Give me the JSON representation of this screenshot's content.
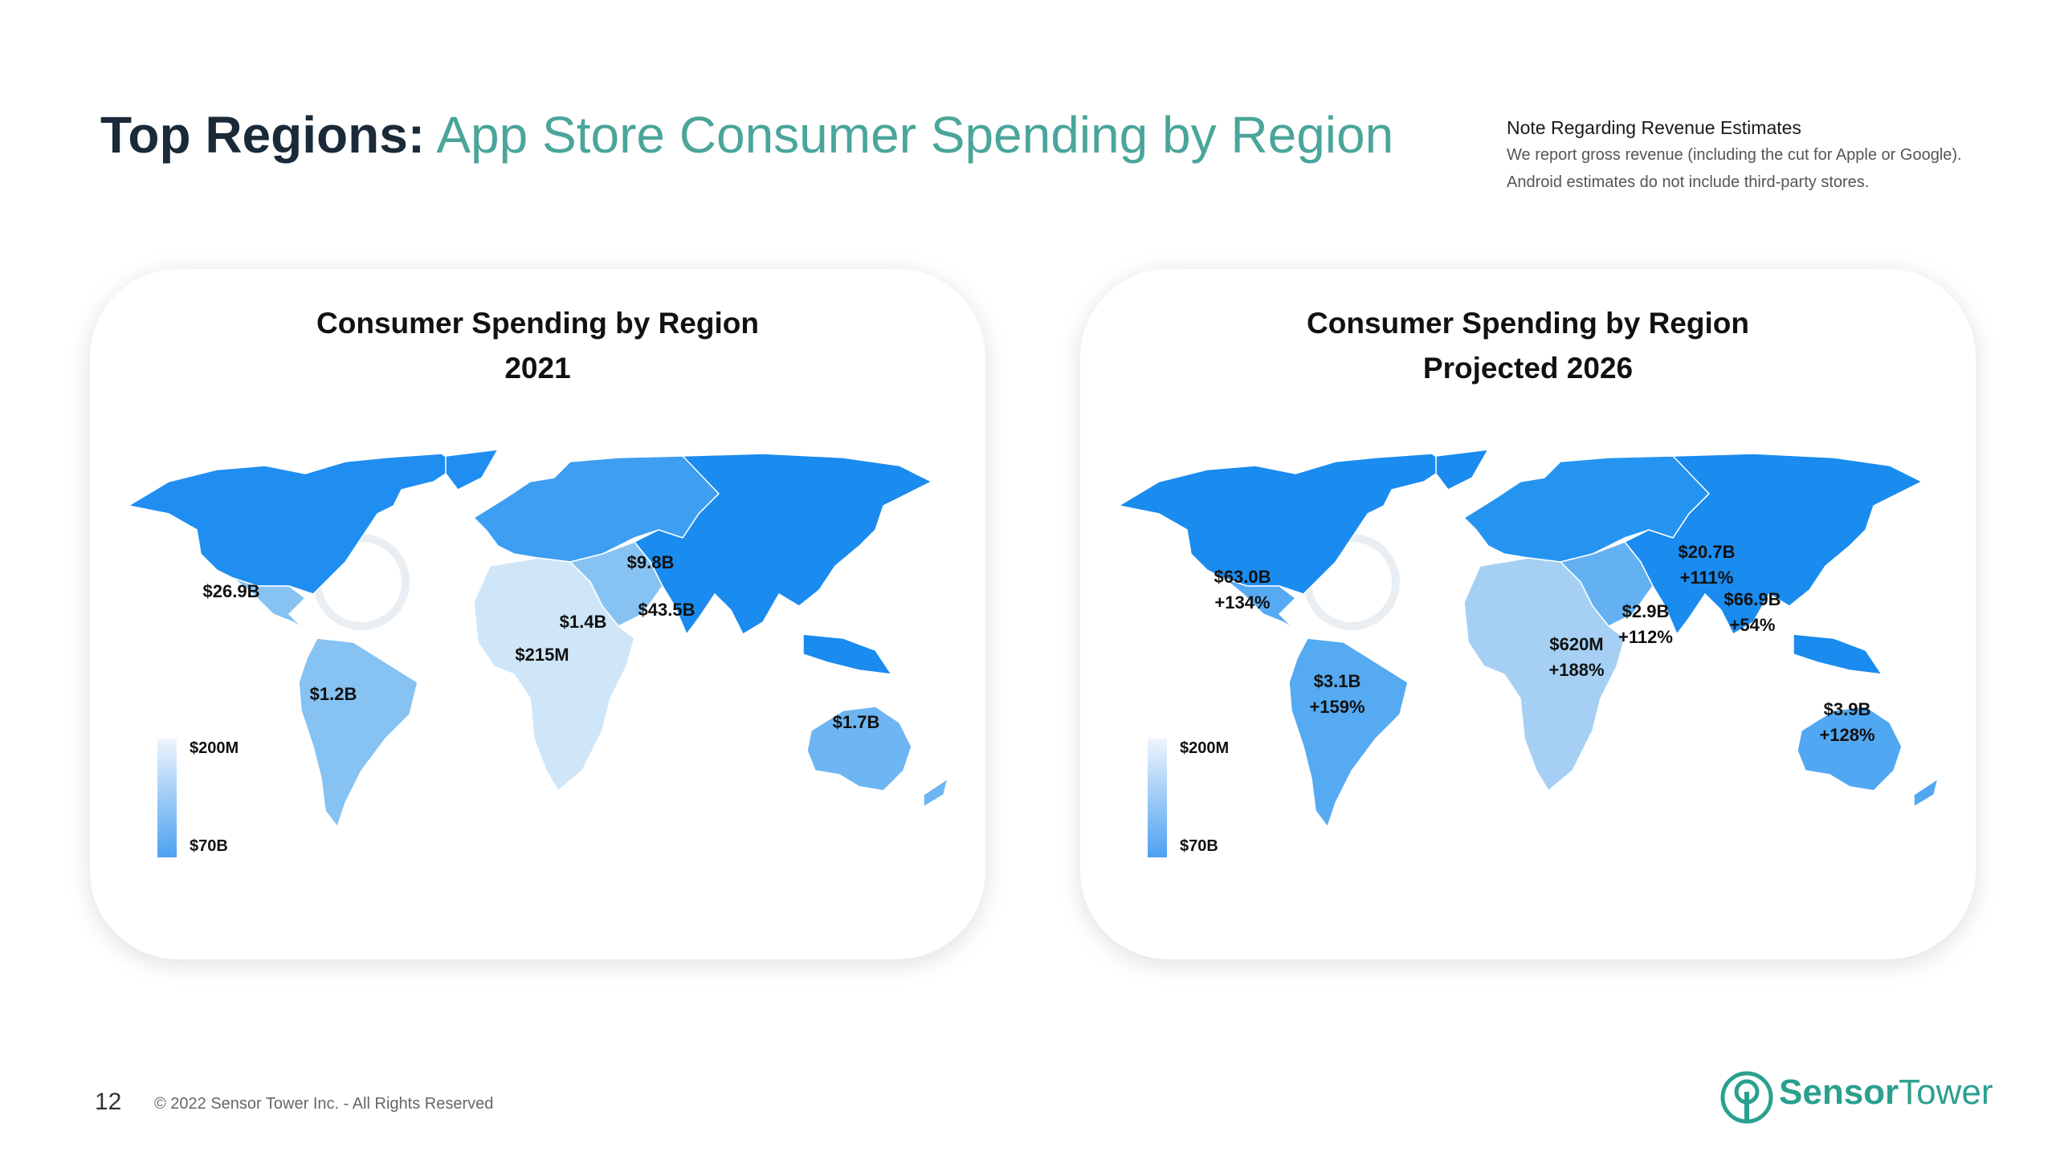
{
  "header": {
    "title_bold": "Top Regions:",
    "title_light": "App Store Consumer Spending by Region"
  },
  "note": {
    "title": "Note Regarding Revenue Estimates",
    "line1": "We report gross revenue (including the cut for Apple or Google).",
    "line2": "Android estimates do not include third-party stores."
  },
  "maps": [
    {
      "title": "Consumer Spending by Region",
      "subtitle": "2021",
      "legend": {
        "low": "$200M",
        "high": "$70B"
      },
      "regions": {
        "north_america": {
          "value": "$26.9B",
          "color": "#1f8ef0"
        },
        "latin_america": {
          "value": "$1.2B",
          "color": "#86c2f2"
        },
        "europe": {
          "value": "$9.8B",
          "color": "#3d9ef2"
        },
        "middle_east": {
          "value": "$1.4B",
          "color": "#87c3f2"
        },
        "africa": {
          "value": "$215M",
          "color": "#cfe6f8"
        },
        "asia": {
          "value": "$43.5B",
          "color": "#1a8bef"
        },
        "oceania": {
          "value": "$1.7B",
          "color": "#6db6f3"
        }
      }
    },
    {
      "title": "Consumer Spending by Region",
      "subtitle": "Projected 2026",
      "legend": {
        "low": "$200M",
        "high": "$70B"
      },
      "regions": {
        "north_america": {
          "value": "$63.0B",
          "growth": "+134%",
          "color": "#1a8bef"
        },
        "latin_america": {
          "value": "$3.1B",
          "growth": "+159%",
          "color": "#55aaf2"
        },
        "europe": {
          "value": "$20.7B",
          "growth": "+111%",
          "color": "#2594f1"
        },
        "middle_east": {
          "value": "$2.9B",
          "growth": "+112%",
          "color": "#63b0f2"
        },
        "africa": {
          "value": "$620M",
          "growth": "+188%",
          "color": "#a5d0f4"
        },
        "asia": {
          "value": "$66.9B",
          "growth": "+54%",
          "color": "#1a8bef"
        },
        "oceania": {
          "value": "$3.9B",
          "growth": "+128%",
          "color": "#50a8f2"
        }
      }
    }
  ],
  "footer": {
    "page": "12",
    "copyright": "© 2022 Sensor Tower Inc. - All Rights Reserved",
    "logo_bold": "Sensor",
    "logo_light": "Tower"
  }
}
